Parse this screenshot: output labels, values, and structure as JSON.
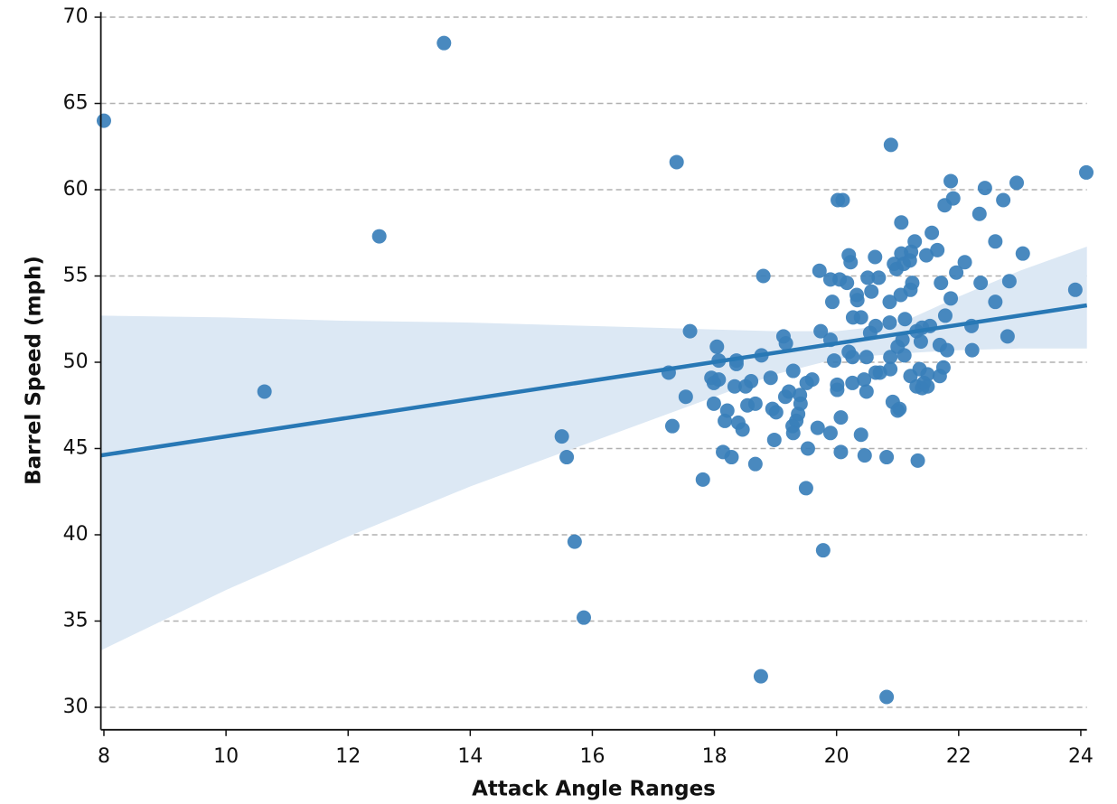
{
  "chart_data": {
    "type": "scatter",
    "xlabel": "Attack Angle Ranges",
    "ylabel": "Barrel Speed (mph)",
    "xlim": [
      7.95,
      24.1
    ],
    "ylim": [
      28.7,
      70.3
    ],
    "xticks": [
      8,
      10,
      12,
      14,
      16,
      18,
      20,
      22,
      24
    ],
    "yticks": [
      30,
      35,
      40,
      45,
      50,
      55,
      60,
      65,
      70
    ],
    "grid": true,
    "color": "#3a7fba",
    "fit_color": "#2878b5",
    "band_color": "#dce8f4",
    "x": [
      8.0,
      13.57,
      12.51,
      10.63,
      15.5,
      15.58,
      15.71,
      15.86,
      17.38,
      17.6,
      17.25,
      17.53,
      17.31,
      17.81,
      18.76,
      20.82,
      20.89,
      24.09,
      23.91,
      23.05,
      22.95,
      22.73,
      22.43,
      22.34,
      22.6,
      22.83,
      22.6,
      22.36,
      22.8,
      22.21,
      22.22,
      22.1,
      21.96,
      21.87,
      21.91,
      21.77,
      21.65,
      21.56,
      21.71,
      21.87,
      21.78,
      21.81,
      21.69,
      21.75,
      21.69,
      21.49,
      21.47,
      21.28,
      21.22,
      21.06,
      21.06,
      21.1,
      21.2,
      20.94,
      20.98,
      21.24,
      21.21,
      21.05,
      20.87,
      21.53,
      21.4,
      21.38,
      21.31,
      21.12,
      21.08,
      21.0,
      21.11,
      20.87,
      21.21,
      21.36,
      21.4,
      21.31,
      21.43,
      21.49,
      20.88,
      20.88,
      21.03,
      20.92,
      21.0,
      21.33,
      20.82,
      20.63,
      20.69,
      20.51,
      20.57,
      20.2,
      20.23,
      20.05,
      20.17,
      20.33,
      20.34,
      19.9,
      19.72,
      19.93,
      20.02,
      20.1,
      20.27,
      20.4,
      20.64,
      20.55,
      20.49,
      20.2,
      20.26,
      19.74,
      19.9,
      19.13,
      19.17,
      19.96,
      20.64,
      20.71,
      20.45,
      20.26,
      20.01,
      20.01,
      20.49,
      20.07,
      20.4,
      20.46,
      20.07,
      19.9,
      19.69,
      19.53,
      19.5,
      19.78,
      19.6,
      19.51,
      19.29,
      19.22,
      19.16,
      19.4,
      19.41,
      19.37,
      19.34,
      19.28,
      19.29,
      18.92,
      18.95,
      19.01,
      18.98,
      18.8,
      18.77,
      18.67,
      18.6,
      18.54,
      18.51,
      18.33,
      18.36,
      18.36,
      18.39,
      18.46,
      18.67,
      18.28,
      18.14,
      18.17,
      18.21,
      17.99,
      18.04,
      18.07,
      17.95,
      18.07,
      17.99
    ],
    "values": [
      64.0,
      68.5,
      57.3,
      48.3,
      45.7,
      44.5,
      39.6,
      35.2,
      61.6,
      51.8,
      49.4,
      48.0,
      46.3,
      43.2,
      31.8,
      30.6,
      62.6,
      61.0,
      54.2,
      56.3,
      60.4,
      59.4,
      60.1,
      58.6,
      57.0,
      54.7,
      53.5,
      54.6,
      51.5,
      52.1,
      50.7,
      55.8,
      55.2,
      60.5,
      59.5,
      59.1,
      56.5,
      57.5,
      54.6,
      53.7,
      52.7,
      50.7,
      51.0,
      49.7,
      49.2,
      49.3,
      56.2,
      57.0,
      56.4,
      58.1,
      56.3,
      55.7,
      55.9,
      55.7,
      55.4,
      54.6,
      54.2,
      53.9,
      53.5,
      52.1,
      52.0,
      51.2,
      51.8,
      52.5,
      51.3,
      50.9,
      50.4,
      52.3,
      49.2,
      49.6,
      48.5,
      48.6,
      48.8,
      48.6,
      50.3,
      49.6,
      47.3,
      47.7,
      47.2,
      44.3,
      44.5,
      56.1,
      54.9,
      54.9,
      54.1,
      56.2,
      55.8,
      54.8,
      54.6,
      53.9,
      53.6,
      54.8,
      55.3,
      53.5,
      59.4,
      59.4,
      52.6,
      52.6,
      52.1,
      51.7,
      50.3,
      50.6,
      50.3,
      51.8,
      51.3,
      51.5,
      51.1,
      50.1,
      49.4,
      49.4,
      49.0,
      48.8,
      48.7,
      48.4,
      48.3,
      46.8,
      45.8,
      44.6,
      44.8,
      45.9,
      46.2,
      45.0,
      42.7,
      39.1,
      49.0,
      48.8,
      49.5,
      48.3,
      48.0,
      48.1,
      47.6,
      47.0,
      46.6,
      46.3,
      45.9,
      49.1,
      47.3,
      47.1,
      45.5,
      55.0,
      50.4,
      47.6,
      48.9,
      47.5,
      48.6,
      48.6,
      49.9,
      50.1,
      46.5,
      46.1,
      44.1,
      44.5,
      44.8,
      46.6,
      47.2,
      47.6,
      50.9,
      50.1,
      49.1,
      49.0,
      48.8
    ],
    "fit": {
      "x": [
        7.95,
        24.1
      ],
      "y": [
        44.6,
        53.3
      ]
    },
    "band": {
      "x": [
        7.95,
        10,
        12,
        14,
        16,
        18,
        19,
        20,
        21,
        22,
        23,
        24.1
      ],
      "lower": [
        33.3,
        36.8,
        39.9,
        42.8,
        45.4,
        48.0,
        49.3,
        50.2,
        50.5,
        50.7,
        50.8,
        50.8
      ],
      "upper": [
        52.7,
        52.6,
        52.4,
        52.3,
        52.1,
        51.9,
        51.8,
        51.8,
        52.2,
        53.8,
        55.3,
        56.7
      ]
    }
  }
}
